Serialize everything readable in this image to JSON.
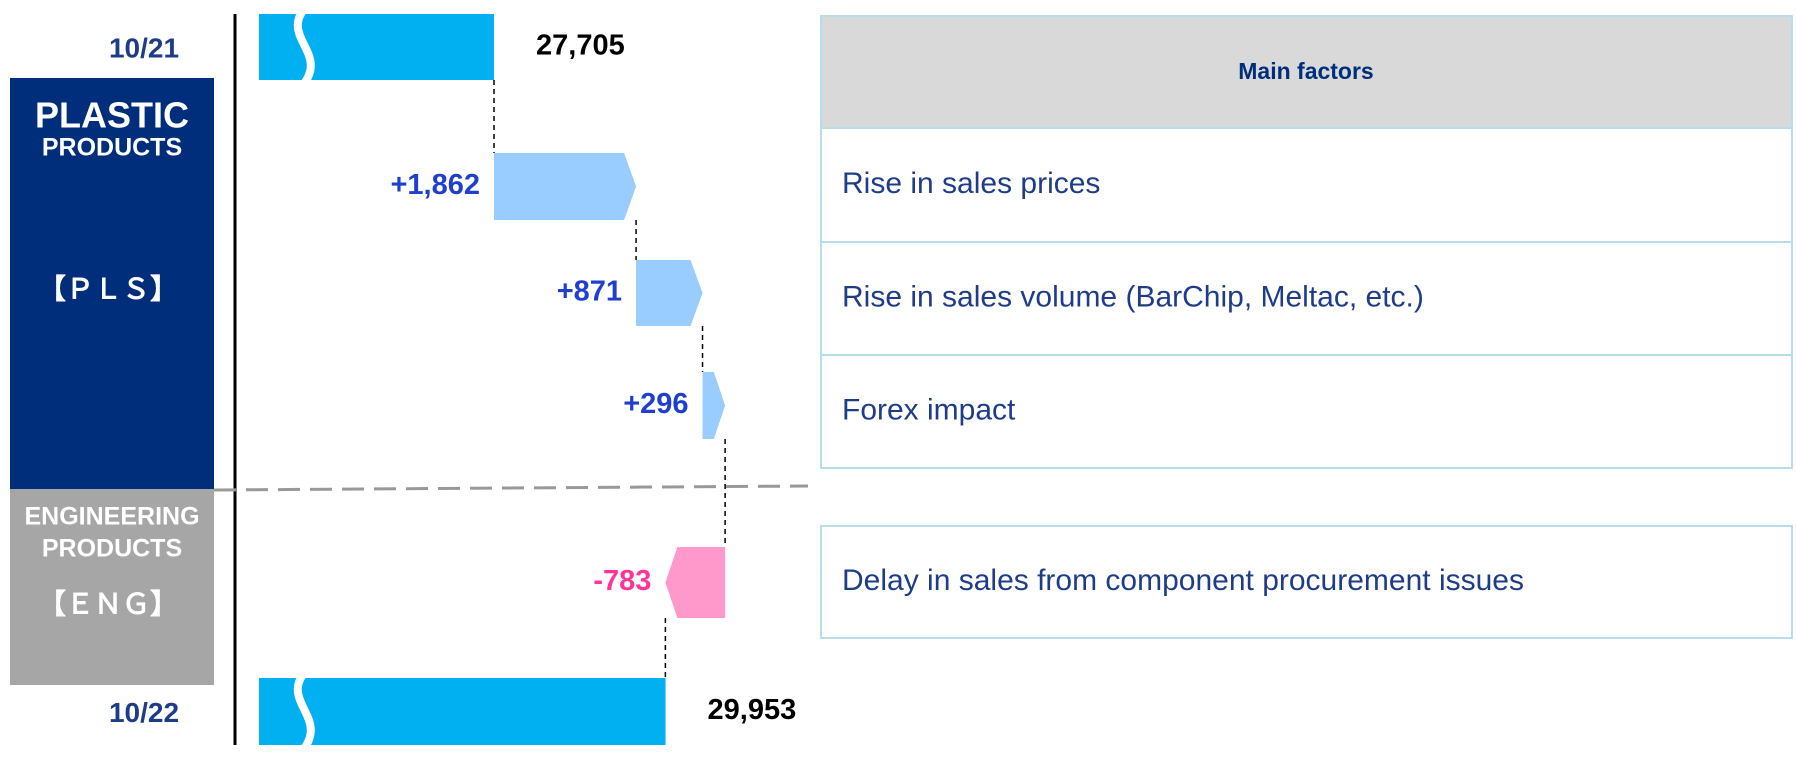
{
  "chart_data": {
    "type": "waterfall",
    "categories": [
      "10/21",
      null,
      null,
      null,
      null,
      "10/22"
    ],
    "values": [
      27705,
      1862,
      871,
      296,
      -783,
      29953
    ],
    "value_labels": [
      "27,705",
      "+1,862",
      "+871",
      "+296",
      "-783",
      "29,953"
    ],
    "measure": [
      "total",
      "relative",
      "relative",
      "relative",
      "relative",
      "total"
    ],
    "colors": {
      "total": "#00b0f0",
      "increase": "#99ccff",
      "decrease": "#ff99cc"
    },
    "label_colors": {
      "total": "#000000",
      "increase": "#1f3fcf",
      "decrease": "#ff3399"
    }
  },
  "segments": [
    {
      "name": [
        "PLASTIC",
        "PRODUCTS"
      ],
      "code": "【ＰＬＳ】"
    },
    {
      "name": [
        "ENGINEERING",
        "PRODUCTS"
      ],
      "code": "【ＥＮＧ】"
    }
  ],
  "table": {
    "header": "Main factors",
    "rows": [
      "Rise in sales prices",
      "Rise in sales volume (BarChip, Meltac, etc.)",
      "Forex impact",
      "Delay in sales from component procurement issues"
    ]
  }
}
